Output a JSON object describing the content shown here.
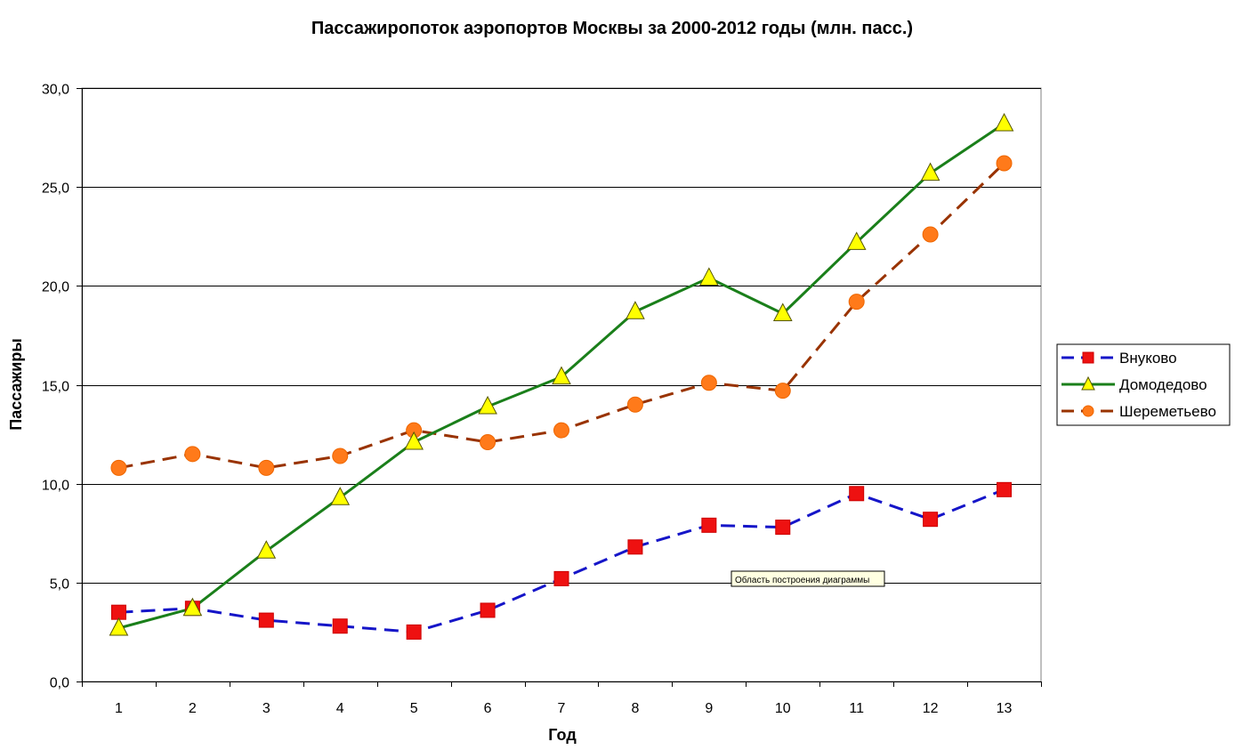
{
  "chart_data": {
    "type": "line",
    "title": "Пассажиропоток аэропортов Москвы за 2000-2012 годы (млн. пасс.)",
    "xlabel": "Год",
    "ylabel": "Пассажиры",
    "categories": [
      "1",
      "2",
      "3",
      "4",
      "5",
      "6",
      "7",
      "8",
      "9",
      "10",
      "11",
      "12",
      "13"
    ],
    "ylim": [
      0,
      30
    ],
    "y_ticks": [
      "0,0",
      "5,0",
      "10,0",
      "15,0",
      "20,0",
      "25,0",
      "30,0"
    ],
    "grid": "horizontal",
    "legend_position": "right",
    "series": [
      {
        "name": "Внуково",
        "color": "#1515c8",
        "marker_color": "#ee1111",
        "marker": "square",
        "dash": "dashed",
        "values": [
          3.5,
          3.7,
          3.1,
          2.8,
          2.5,
          3.6,
          5.2,
          6.8,
          7.9,
          7.8,
          9.5,
          8.2,
          9.7
        ]
      },
      {
        "name": "Домодедово",
        "color": "#1a7f1a",
        "marker_color": "#ffff00",
        "marker": "triangle",
        "dash": "solid",
        "values": [
          2.7,
          3.7,
          6.6,
          9.3,
          12.1,
          13.9,
          15.4,
          18.7,
          20.4,
          18.6,
          22.2,
          25.7,
          28.2
        ]
      },
      {
        "name": "Шереметьево",
        "color": "#993300",
        "marker_color": "#ff7a1a",
        "marker": "circle",
        "dash": "dashed",
        "values": [
          10.8,
          11.5,
          10.8,
          11.4,
          12.7,
          12.1,
          12.7,
          14.0,
          15.1,
          14.7,
          19.2,
          22.6,
          26.2
        ]
      }
    ],
    "annotation": "Область построения диаграммы"
  }
}
